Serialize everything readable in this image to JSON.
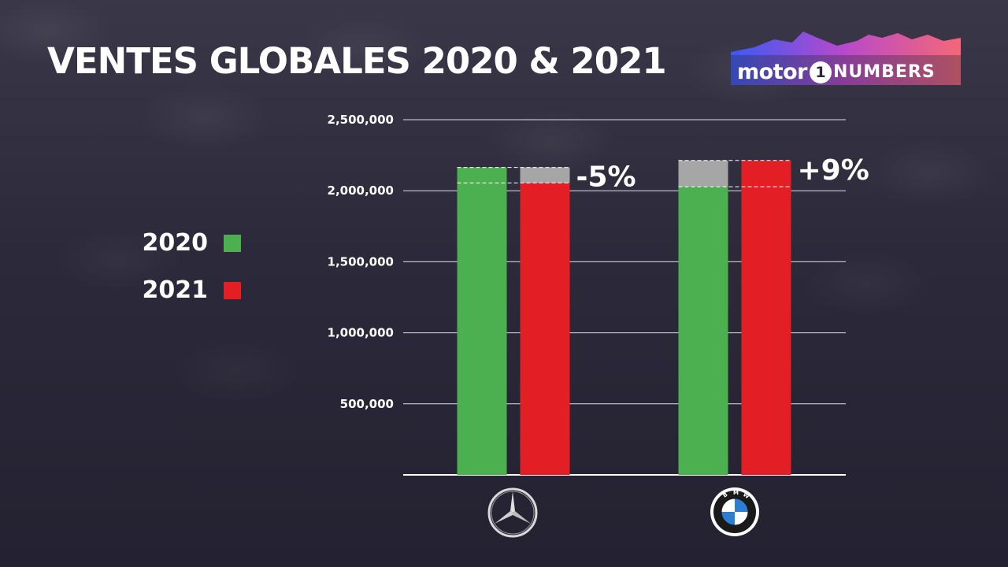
{
  "title": "VENTES GLOBALES 2020 & 2021",
  "logo": {
    "motor": "motor",
    "one": "1",
    "numbers": "NUMBERS"
  },
  "colors": {
    "background": "#2a2838",
    "series_2020": "#4caf50",
    "series_2021": "#e31e24",
    "difference": "#a6a6a6",
    "text": "#ffffff"
  },
  "chart_data": {
    "type": "bar",
    "title": "VENTES GLOBALES 2020 & 2021",
    "categories": [
      "Mercedes-Benz",
      "BMW"
    ],
    "category_icons": [
      "mercedes-logo-icon",
      "bmw-logo-icon"
    ],
    "series": [
      {
        "name": "2020",
        "values": [
          2164000,
          2028000
        ],
        "color": "#4caf50"
      },
      {
        "name": "2021",
        "values": [
          2055000,
          2213000
        ],
        "color": "#e31e24"
      }
    ],
    "changes": [
      "-5%",
      "+9%"
    ],
    "ylim": [
      0,
      2500000
    ],
    "yticks": [
      500000,
      1000000,
      1500000,
      2000000,
      2500000
    ],
    "ytick_labels": [
      "500,000",
      "1,000,000",
      "1,500,000",
      "2,000,000",
      "2,500,000"
    ],
    "grid": true,
    "legend": {
      "position": "left",
      "items": [
        "2020",
        "2021"
      ]
    }
  }
}
